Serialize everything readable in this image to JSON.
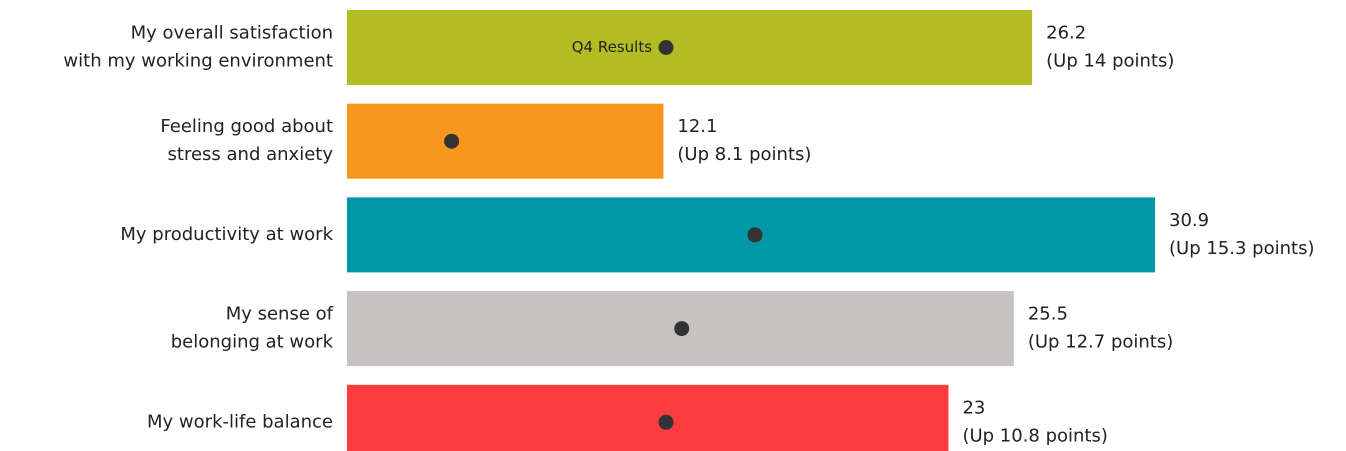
{
  "chart_data": {
    "type": "bar",
    "orientation": "horizontal",
    "categories": [
      "My overall satisfaction\nwith my working environment",
      "Feeling good about\nstress and anxiety",
      "My productivity at work",
      "My sense of\nbelonging at work",
      "My work-life balance"
    ],
    "values": [
      26.2,
      12.1,
      30.9,
      25.5,
      23
    ],
    "colors": [
      "#b3bc22",
      "#f7971e",
      "#0097a7",
      "#c6c2c2",
      "#fd3c40"
    ],
    "change_labels": [
      "(Up 14 points)",
      "(Up 8.1 points)",
      "(Up 15.3 points)",
      "(Up 12.7 points)",
      "(Up 10.8 points)"
    ],
    "dots": {
      "name": "Q4 Results",
      "color": "#333333",
      "values": [
        12.2,
        4,
        15.6,
        12.8,
        12.2
      ]
    }
  }
}
